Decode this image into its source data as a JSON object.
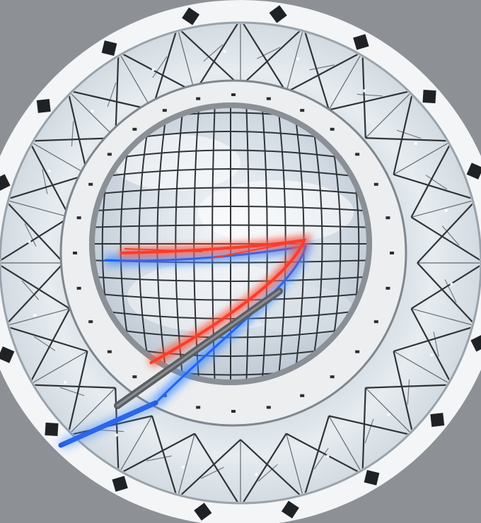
{
  "photo": {
    "subject": "",
    "colors": {
      "ceiling_gray": "#8d9196",
      "outer_ring": "#f4f5f6",
      "glass_light": "#e3eaef",
      "glass_mid": "#c8d2da",
      "mullion": "#2f3438",
      "inner_ring": "#eceef0",
      "frame_gray": "#8a9096",
      "sky_light": "#eef2f6",
      "sky_mid": "#cfd8e1",
      "neon_red": "#ff3b2a",
      "neon_blue": "#1f62ff",
      "pole_gray": "#5b5f63"
    }
  }
}
